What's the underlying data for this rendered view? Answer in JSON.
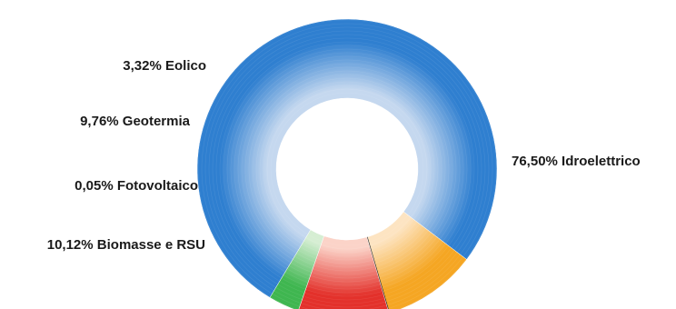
{
  "chart_data": {
    "type": "pie",
    "style": "donut",
    "slices": [
      {
        "label": "76,50% Idroelettrico",
        "name": "Idroelettrico",
        "value": 76.5,
        "color": "#2f7fd0",
        "inner_color": "#c5d8ef"
      },
      {
        "label": "10,12% Biomasse e RSU",
        "name": "Biomasse e RSU",
        "value": 10.12,
        "color": "#f5a623",
        "inner_color": "#fde4c2"
      },
      {
        "label": "0,05% Fotovoltaico",
        "name": "Fotovoltaico",
        "value": 0.05,
        "color": "#222222",
        "inner_color": "#444444"
      },
      {
        "label": "9,76% Geotermia",
        "name": "Geotermia",
        "value": 9.76,
        "color": "#e3312b",
        "inner_color": "#fbd3c8"
      },
      {
        "label": "3,32% Eolico",
        "name": "Eolico",
        "value": 3.32,
        "color": "#3fb650",
        "inner_color": "#d6eed3"
      }
    ]
  }
}
